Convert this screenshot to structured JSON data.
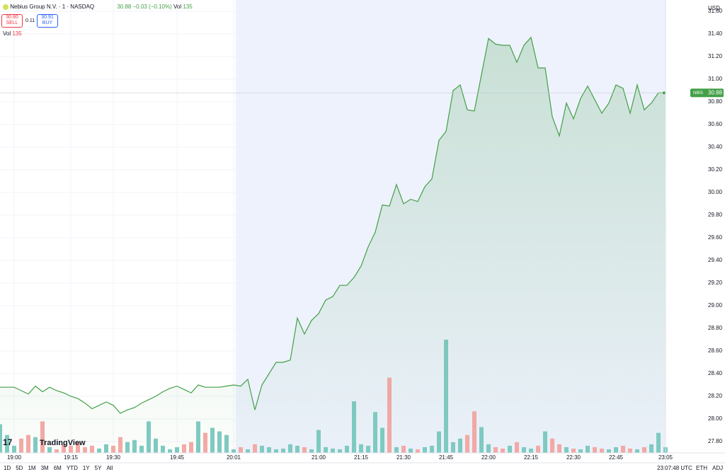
{
  "ui": {
    "symbol": "Nebius Group N.V. · 1 · NASDAQ",
    "price": "30.88",
    "change": "−0.03 (−0.10%)",
    "vol_label": "Vol",
    "vol": "135",
    "sell_price": "30.80",
    "sell": "SELL",
    "spread": "0.11",
    "buy_price": "30.91",
    "buy": "BUY",
    "currency": "USD",
    "logo": "TradingView",
    "ranges": [
      "1D",
      "5D",
      "1M",
      "3M",
      "6M",
      "YTD",
      "1Y",
      "5Y",
      "All"
    ],
    "clock": "23:07:48 UTC",
    "eth": "ETH",
    "adj": "ADJ"
  },
  "chart_data": {
    "type": "area",
    "categories": [
      null,
      null,
      "19:00",
      null,
      null,
      null,
      null,
      null,
      null,
      null,
      "19:15",
      null,
      null,
      null,
      null,
      null,
      "19:30",
      null,
      null,
      null,
      null,
      null,
      null,
      null,
      null,
      "19:45",
      null,
      null,
      null,
      null,
      null,
      null,
      null,
      "20:01",
      null,
      null,
      null,
      null,
      null,
      null,
      null,
      null,
      null,
      null,
      null,
      "21:00",
      null,
      null,
      null,
      null,
      null,
      "21:15",
      null,
      null,
      null,
      null,
      null,
      "21:30",
      null,
      null,
      null,
      null,
      null,
      "21:45",
      null,
      null,
      null,
      null,
      null,
      "22:00",
      null,
      null,
      null,
      null,
      null,
      "22:15",
      null,
      null,
      null,
      null,
      null,
      "22:30",
      null,
      null,
      null,
      null,
      null,
      "22:45",
      null,
      null,
      null,
      null,
      null,
      null,
      "23:05"
    ],
    "series": [
      {
        "name": "NBIS",
        "color": "#43a047",
        "values": [
          28.28,
          28.28,
          28.28,
          28.25,
          28.22,
          28.29,
          28.24,
          28.28,
          28.25,
          28.23,
          28.2,
          28.18,
          28.14,
          28.09,
          28.12,
          28.15,
          28.12,
          28.05,
          28.08,
          28.1,
          28.14,
          28.17,
          28.2,
          28.24,
          28.27,
          28.29,
          28.26,
          28.23,
          28.3,
          28.28,
          28.28,
          28.28,
          28.29,
          28.3,
          28.29,
          28.35,
          28.08,
          28.3,
          28.4,
          28.5,
          28.5,
          28.52,
          28.89,
          28.75,
          28.87,
          28.93,
          29.05,
          29.08,
          29.18,
          29.18,
          29.25,
          29.35,
          29.52,
          29.65,
          29.89,
          29.88,
          30.07,
          29.9,
          29.94,
          29.92,
          30.05,
          30.12,
          30.46,
          30.54,
          30.9,
          30.95,
          30.73,
          30.72,
          31.04,
          31.36,
          31.31,
          31.3,
          31.3,
          31.15,
          31.3,
          31.37,
          31.1,
          31.1,
          30.67,
          30.5,
          30.79,
          30.65,
          30.83,
          30.94,
          30.82,
          30.7,
          30.79,
          30.95,
          30.92,
          30.7,
          30.95,
          30.73,
          30.79,
          30.88,
          30.88
        ]
      }
    ],
    "volume": [
      40,
      25,
      10,
      20,
      25,
      22,
      44,
      8,
      5,
      12,
      10,
      15,
      8,
      10,
      6,
      12,
      10,
      22,
      15,
      18,
      10,
      44,
      20,
      10,
      5,
      8,
      12,
      15,
      44,
      28,
      35,
      30,
      25,
      5,
      8,
      5,
      12,
      10,
      8,
      5,
      6,
      12,
      10,
      8,
      5,
      32,
      8,
      6,
      5,
      10,
      72,
      12,
      10,
      57,
      35,
      105,
      8,
      10,
      6,
      5,
      8,
      10,
      30,
      158,
      15,
      20,
      25,
      58,
      36,
      12,
      8,
      6,
      10,
      15,
      8,
      6,
      10,
      30,
      20,
      12,
      8,
      6,
      5,
      10,
      8,
      6,
      5,
      8,
      10,
      6,
      5,
      8,
      12,
      28,
      8
    ],
    "ylim": [
      27.7,
      31.7
    ],
    "yticks": [
      {
        "value": 27.8,
        "label": "27.80"
      },
      {
        "value": 28,
        "label": "28.00"
      },
      {
        "value": 28.2,
        "label": "28.20"
      },
      {
        "value": 28.4,
        "label": "28.40"
      },
      {
        "value": 28.6,
        "label": "28.60"
      },
      {
        "value": 28.8,
        "label": "28.80"
      },
      {
        "value": 29,
        "label": "29.00"
      },
      {
        "value": 29.2,
        "label": "29.20"
      },
      {
        "value": 29.4,
        "label": "29.40"
      },
      {
        "value": 29.6,
        "label": "29.60"
      },
      {
        "value": 29.8,
        "label": "29.80"
      },
      {
        "value": 30,
        "label": "30.00"
      },
      {
        "value": 30.2,
        "label": "30.20"
      },
      {
        "value": 30.4,
        "label": "30.40"
      },
      {
        "value": 30.6,
        "label": "30.60"
      },
      {
        "value": 30.8,
        "label": "30.80"
      },
      {
        "value": 31,
        "label": "31.00"
      },
      {
        "value": 31.2,
        "label": "31.20"
      },
      {
        "value": 31.4,
        "label": "31.40"
      },
      {
        "value": 31.6,
        "label": "31.60"
      }
    ],
    "last": 30.88,
    "grid": true
  }
}
